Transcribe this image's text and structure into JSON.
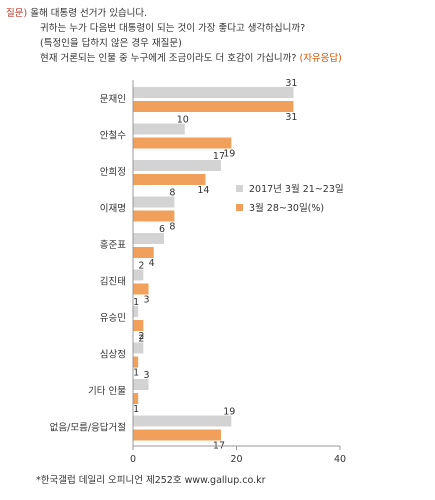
{
  "question": {
    "tag": "질문)",
    "line1": "올해 대통령 선거가 있습니다.",
    "line2": "귀하는 누가 다음번 대통령이 되는 것이 가장 좋다고 생각하십니까?",
    "line3": "(특정인을 답하지 않은 경우 재질문)",
    "line4": "현재 거론되는 인물 중 누구에게 조금이라도 더 호감이 가십니까?",
    "hint": "(자유응답)"
  },
  "source": "*한국갤럽 데일리 오피니언 제252호 www.gallup.co.kr",
  "colors": {
    "series1": "#d3d3d3",
    "series2": "#f0a05a",
    "axis": "#999999",
    "label": "#333333"
  },
  "chart_data": {
    "type": "bar",
    "orientation": "horizontal",
    "categories": [
      "문재인",
      "안철수",
      "안희정",
      "이재명",
      "홍준표",
      "김진태",
      "유승민",
      "심상정",
      "기타 인물",
      "없음/모름/응답거절"
    ],
    "series": [
      {
        "name": "2017년 3월 21~23일",
        "values": [
          31,
          10,
          17,
          8,
          6,
          2,
          1,
          2,
          3,
          19
        ]
      },
      {
        "name": "3월 28~30일(%)",
        "values": [
          31,
          19,
          14,
          8,
          4,
          3,
          2,
          1,
          1,
          17
        ]
      }
    ],
    "xlim": [
      0,
      40
    ],
    "xticks": [
      0,
      20,
      40
    ],
    "legend_position": "right",
    "grid": false
  }
}
